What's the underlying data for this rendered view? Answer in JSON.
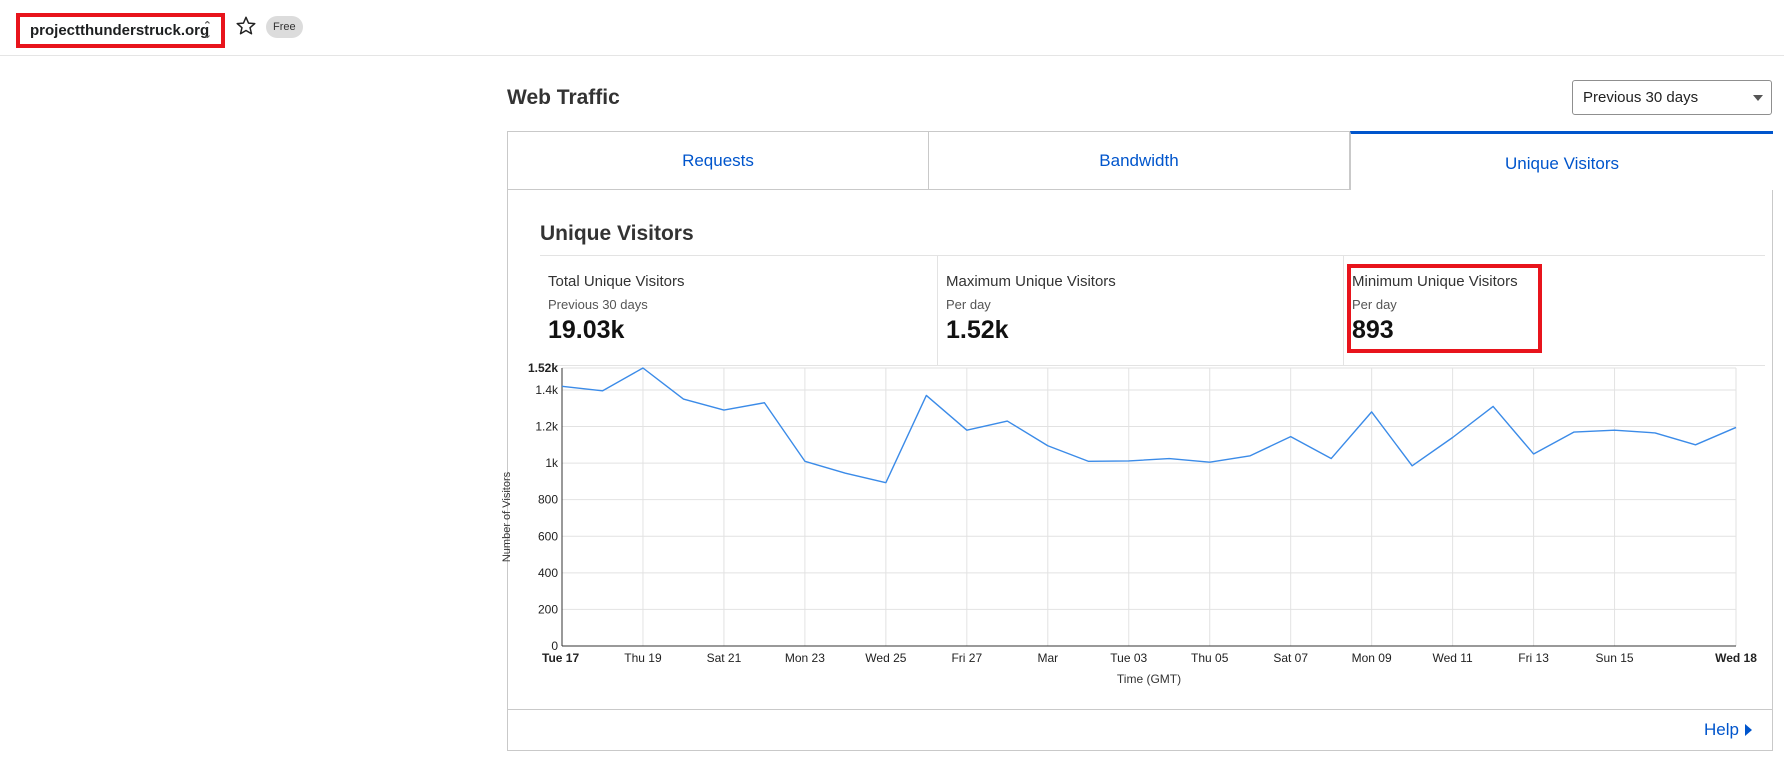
{
  "header": {
    "zone_name": "projectthunderstruck.org",
    "plan_badge": "Free"
  },
  "page": {
    "title": "Web Traffic",
    "range_select": "Previous 30 days"
  },
  "tabs": [
    {
      "label": "Requests",
      "active": false
    },
    {
      "label": "Bandwidth",
      "active": false
    },
    {
      "label": "Unique Visitors",
      "active": true
    }
  ],
  "panel": {
    "title": "Unique Visitors",
    "stats": [
      {
        "label": "Total Unique Visitors",
        "sub": "Previous 30 days",
        "value": "19.03k"
      },
      {
        "label": "Maximum Unique Visitors",
        "sub": "Per day",
        "value": "1.52k"
      },
      {
        "label": "Minimum Unique Visitors",
        "sub": "Per day",
        "value": "893"
      }
    ],
    "help_label": "Help"
  },
  "colors": {
    "accent": "#0055cc",
    "highlight": "#e8141c",
    "line": "#3b8be8"
  },
  "chart_data": {
    "type": "line",
    "title": "",
    "xlabel": "Time (GMT)",
    "ylabel": "Number of Visitors",
    "ylim": [
      0,
      1520
    ],
    "y_ticks": [
      0,
      200,
      400,
      600,
      800,
      1000,
      1200,
      1400,
      1520
    ],
    "y_tick_labels": [
      "0",
      "200",
      "400",
      "600",
      "800",
      "1k",
      "1.2k",
      "1.4k",
      "1.52k"
    ],
    "x_tick_labels": [
      "Tue 17",
      "Thu 19",
      "Sat 21",
      "Mon 23",
      "Wed 25",
      "Fri 27",
      "Mar",
      "Tue 03",
      "Thu 05",
      "Sat 07",
      "Mon 09",
      "Wed 11",
      "Fri 13",
      "Sun 15",
      "Wed 18"
    ],
    "x_tick_days": [
      0,
      2,
      4,
      6,
      8,
      10,
      12,
      14,
      16,
      18,
      20,
      22,
      24,
      26,
      29
    ],
    "grid": true,
    "series": [
      {
        "values": [
          1420,
          1395,
          1520,
          1350,
          1290,
          1330,
          1010,
          945,
          893,
          1370,
          1180,
          1230,
          1095,
          1010,
          1012,
          1025,
          1005,
          1040,
          1145,
          1025,
          1280,
          985,
          1140,
          1310,
          1050,
          1170,
          1180,
          1165,
          1100,
          1195
        ]
      }
    ]
  }
}
